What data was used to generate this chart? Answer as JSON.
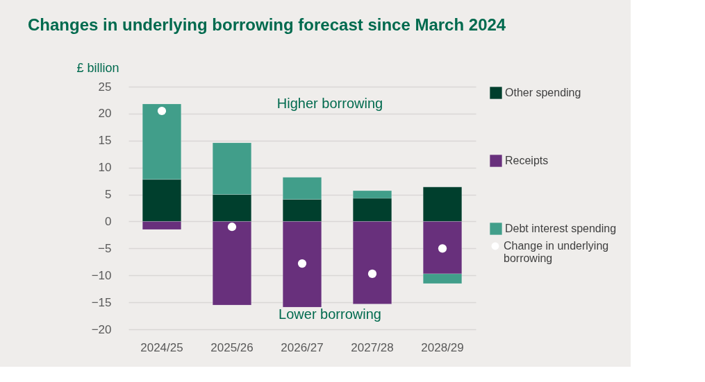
{
  "chart_data": {
    "type": "bar",
    "title": "Changes in underlying borrowing forecast since March 2024",
    "ylabel": "£ billion",
    "categories": [
      "2024/25",
      "2025/26",
      "2026/27",
      "2027/28",
      "2028/29"
    ],
    "stacked": true,
    "series": [
      {
        "name": "Other spending",
        "color": "#003f2d",
        "values": [
          7.8,
          5.0,
          4.1,
          4.3,
          6.4
        ]
      },
      {
        "name": "Receipts",
        "color": "#68307c",
        "values": [
          -1.5,
          -15.5,
          -15.9,
          -15.3,
          -9.7
        ]
      },
      {
        "name": "Debt interest spending",
        "color": "#419e8a",
        "values": [
          14.0,
          9.6,
          4.1,
          1.4,
          -1.8
        ]
      },
      {
        "name": "Change in underlying borrowing",
        "type": "scatter",
        "color": "#ffffff",
        "x": [
          "2024/25",
          "2025/26",
          "2026/27",
          "2027/28",
          "2028/29"
        ],
        "values": [
          20.5,
          -1.0,
          -7.8,
          -9.7,
          -5.0
        ]
      }
    ],
    "ylim": [
      -20,
      25
    ],
    "yticks": [
      -20,
      -15,
      -10,
      -5,
      0,
      5,
      10,
      15,
      20,
      25
    ],
    "grid": "y",
    "legend": "right",
    "marker": "circle",
    "annotations": [
      "Higher borrowing",
      "Lower borrowing"
    ]
  }
}
